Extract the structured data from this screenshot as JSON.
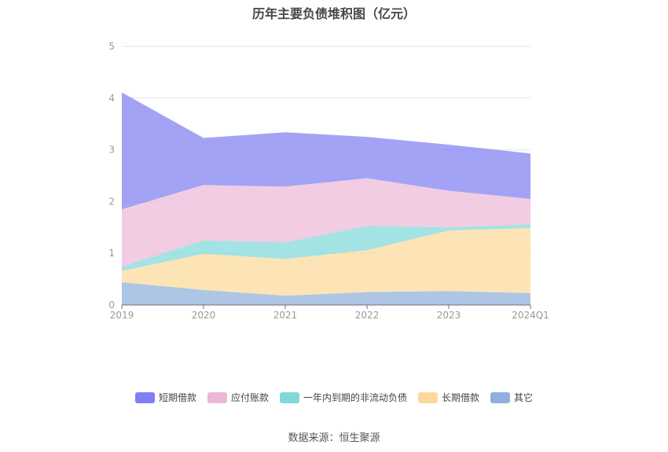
{
  "chart_data": {
    "type": "area",
    "stacked": true,
    "title": "历年主要负债堆积图（亿元）",
    "categories": [
      "2019",
      "2020",
      "2021",
      "2022",
      "2023",
      "2024Q1"
    ],
    "ylim": [
      0,
      5
    ],
    "yticks": [
      "0",
      "1",
      "2",
      "3",
      "4",
      "5"
    ],
    "grid": true,
    "legend_position": "bottom",
    "series": [
      {
        "name": "其它",
        "color": "#8fb0dc",
        "values": [
          0.44,
          0.29,
          0.18,
          0.25,
          0.27,
          0.23
        ]
      },
      {
        "name": "长期借款",
        "color": "#fcd99a",
        "values": [
          0.22,
          0.7,
          0.71,
          0.81,
          1.17,
          1.26
        ]
      },
      {
        "name": "一年内到期的非流动负债",
        "color": "#80d8d8",
        "values": [
          0.08,
          0.26,
          0.32,
          0.47,
          0.06,
          0.07
        ]
      },
      {
        "name": "应付账款",
        "color": "#ecb8d8",
        "values": [
          1.11,
          1.07,
          1.08,
          0.92,
          0.71,
          0.49
        ]
      },
      {
        "name": "短期借款",
        "color": "#7f7ff3",
        "values": [
          2.26,
          0.91,
          1.05,
          0.8,
          0.89,
          0.88
        ]
      }
    ]
  },
  "source": "数据来源：恒生聚源"
}
